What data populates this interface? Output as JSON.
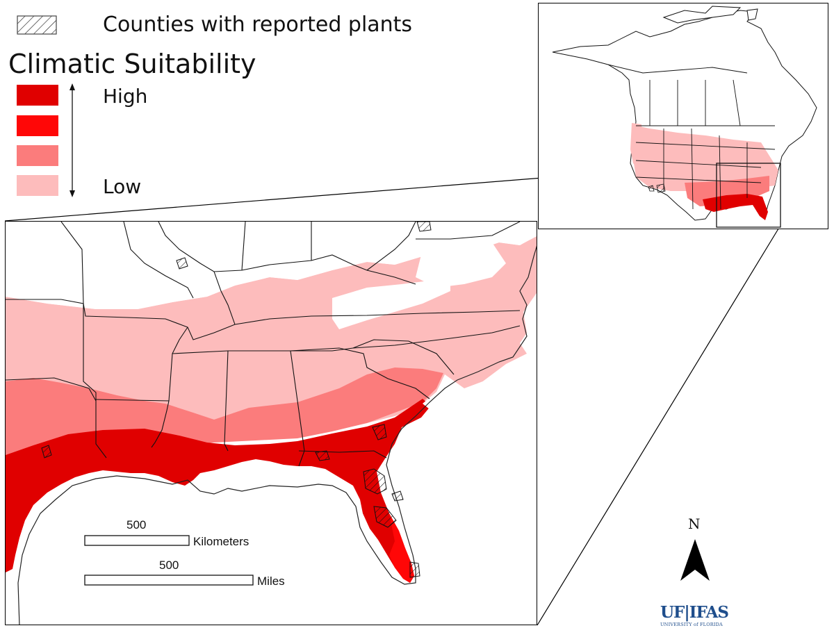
{
  "legend": {
    "hatch_label": "Counties with reported plants",
    "title": "Climatic Suitability",
    "high_label": "High",
    "low_label": "Low",
    "classes": [
      {
        "level": "highest",
        "color": "#e00000"
      },
      {
        "level": "high",
        "color": "#ff0707"
      },
      {
        "level": "moderate",
        "color": "#fb7c7c"
      },
      {
        "level": "low",
        "color": "#fdbcbc"
      }
    ]
  },
  "scale_bar": {
    "km_value": "500",
    "km_unit": "Kilometers",
    "mi_value": "500",
    "mi_unit": "Miles"
  },
  "north_arrow": {
    "letter": "N"
  },
  "logo": {
    "main": "UF|IFAS",
    "sub": "UNIVERSITY of FLORIDA"
  },
  "colors": {
    "border": "#1a1a1a",
    "logo_blue": "#1f4e8c"
  }
}
